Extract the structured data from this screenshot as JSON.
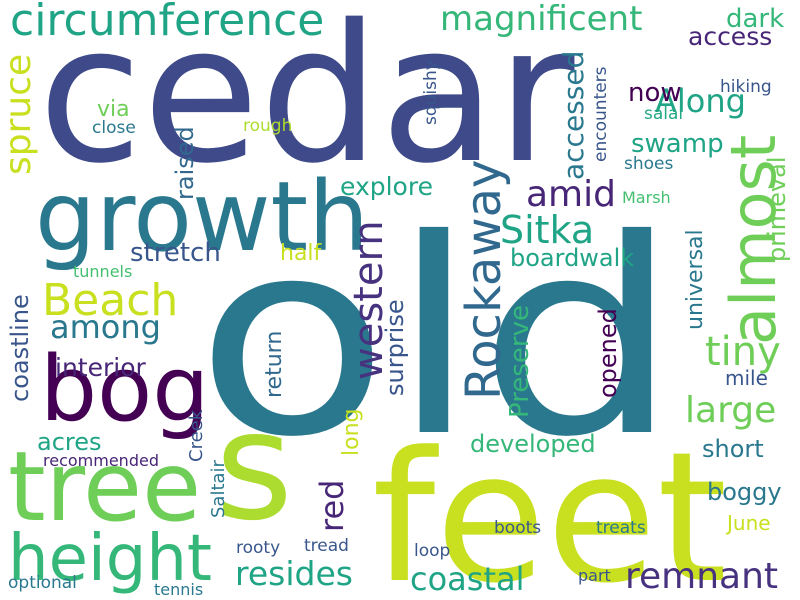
{
  "palette": {
    "navy": "#3e4a89",
    "teal": "#2a788e",
    "purple": "#440154",
    "dark_purple": "#482677",
    "blue": "#31688e",
    "green": "#35b779",
    "mint": "#44bf70",
    "lime": "#addc30",
    "yellow": "#c8e020",
    "sea": "#20a486",
    "aqua": "#22a884",
    "light_green": "#6ece58",
    "indigo": "#46327e",
    "slate": "#39568c"
  },
  "words": {
    "cedar": "cedar",
    "old": "old",
    "feet": "feet",
    "s": "s",
    "growth": "growth",
    "tree": "tree",
    "bog": "bog",
    "height": "height",
    "circumference": "circumference",
    "magnificent": "magnificent",
    "almost": "almost",
    "rockaway": "Rockaway",
    "beach": "Beach",
    "spruce": "spruce",
    "sitka": "Sitka",
    "western": "western",
    "amid": "amid",
    "along": "Along",
    "tiny": "tiny",
    "large": "large",
    "remnant": "remnant",
    "resides": "resides",
    "coastal": "coastal",
    "among": "among",
    "accessed": "accessed",
    "access": "access",
    "dark": "dark",
    "now": "now",
    "swamp": "swamp",
    "stretch": "stretch",
    "explore": "explore",
    "boardwalk": "boardwalk",
    "raised": "raised",
    "via": "via",
    "close": "close",
    "rough": "rough",
    "squishy": "squishy",
    "encounters": "encounters",
    "hiking": "hiking",
    "salal": "salal",
    "primeval": "primeval",
    "shoes": "shoes",
    "marsh": "Marsh",
    "half": "half",
    "tunnels": "tunnels",
    "coastline": "coastline",
    "interior": "interior",
    "universal": "universal",
    "surprise": "surprise",
    "preserve": "Preserve",
    "opened": "opened",
    "return": "return",
    "red": "red",
    "long": "long",
    "developed": "developed",
    "acres": "acres",
    "recommended": "recommended",
    "creek": "Creek",
    "saltair": "Saltair",
    "mile": "mile",
    "short": "short",
    "boggy": "boggy",
    "june": "June",
    "rooty": "rooty",
    "tread": "tread",
    "boots": "boots",
    "treats": "treats",
    "loop": "loop",
    "optional": "optional",
    "tennis": "tennis",
    "part": "part"
  }
}
